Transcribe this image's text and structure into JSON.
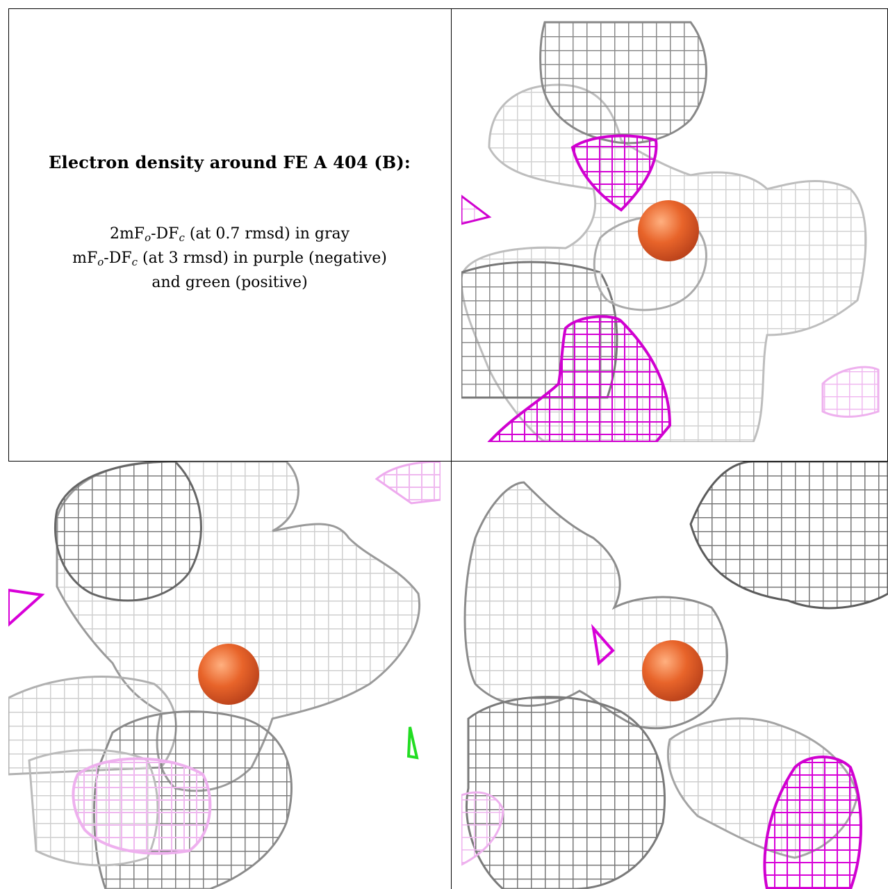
{
  "caption": {
    "title": "Electron density around FE A 404 (B):",
    "line1": {
      "pre": "2mF",
      "sub1": "o",
      "mid": "-DF",
      "sub2": "c",
      "post": " (at 0.7 rmsd) in gray"
    },
    "line2": {
      "pre": "mF",
      "sub1": "o",
      "mid": "-DF",
      "sub2": "c",
      "post": " (at 3 rmsd) in purple (negative)"
    },
    "line3": "and green (positive)"
  },
  "colors": {
    "mesh_gray": "#9a9a9a",
    "mesh_dark": "#555555",
    "mesh_light": "#c8c8c8",
    "negative_purple": "#e000e0",
    "negative_faint": "#eebbee",
    "positive_green": "#22dd22",
    "iron_sphere": "#e8642a",
    "grid_line": "#000000"
  },
  "panels": [
    {
      "name": "panel-view-1",
      "atom": "FE"
    },
    {
      "name": "panel-view-2",
      "atom": "FE"
    },
    {
      "name": "panel-view-3",
      "atom": "FE"
    }
  ]
}
